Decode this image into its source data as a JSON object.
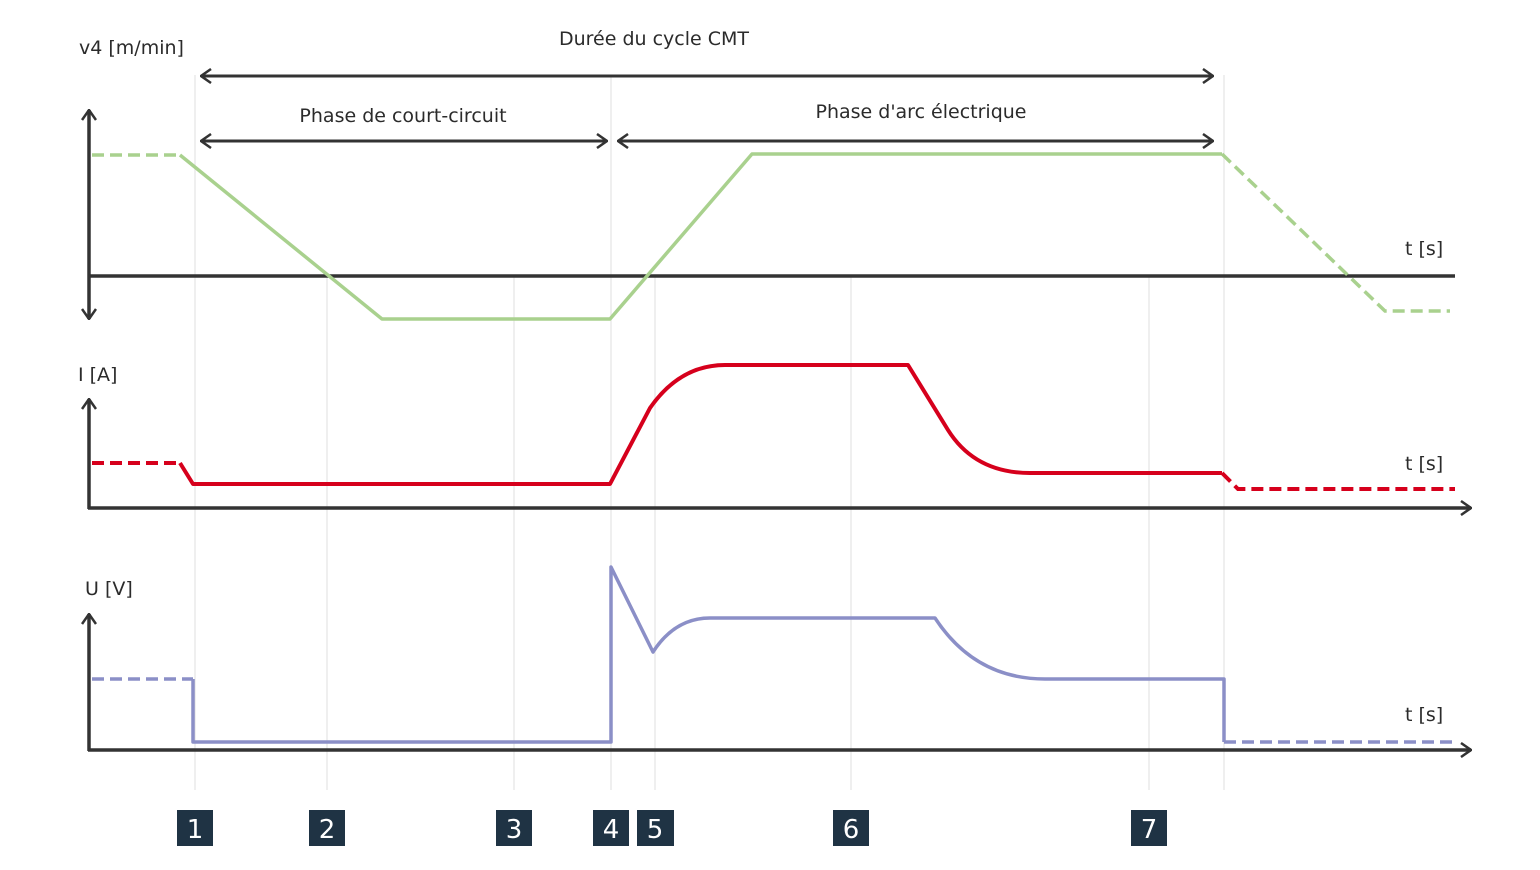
{
  "title": "Durée du cycle CMT",
  "phases": {
    "short_circuit": "Phase de court-circuit",
    "arc": "Phase d'arc électrique"
  },
  "panels": [
    {
      "ylabel": "v4 [m/min]",
      "xlabel": "t [s]"
    },
    {
      "ylabel": "I [A]",
      "xlabel": "t [s]"
    },
    {
      "ylabel": "U [V]",
      "xlabel": "t [s]"
    }
  ],
  "markers": [
    "1",
    "2",
    "3",
    "4",
    "5",
    "6",
    "7"
  ],
  "colors": {
    "wire_speed": "#a9d18e",
    "current": "#d6001c",
    "voltage": "#8b8fc7",
    "axis": "#333333",
    "marker_box": "#1f3344"
  }
}
